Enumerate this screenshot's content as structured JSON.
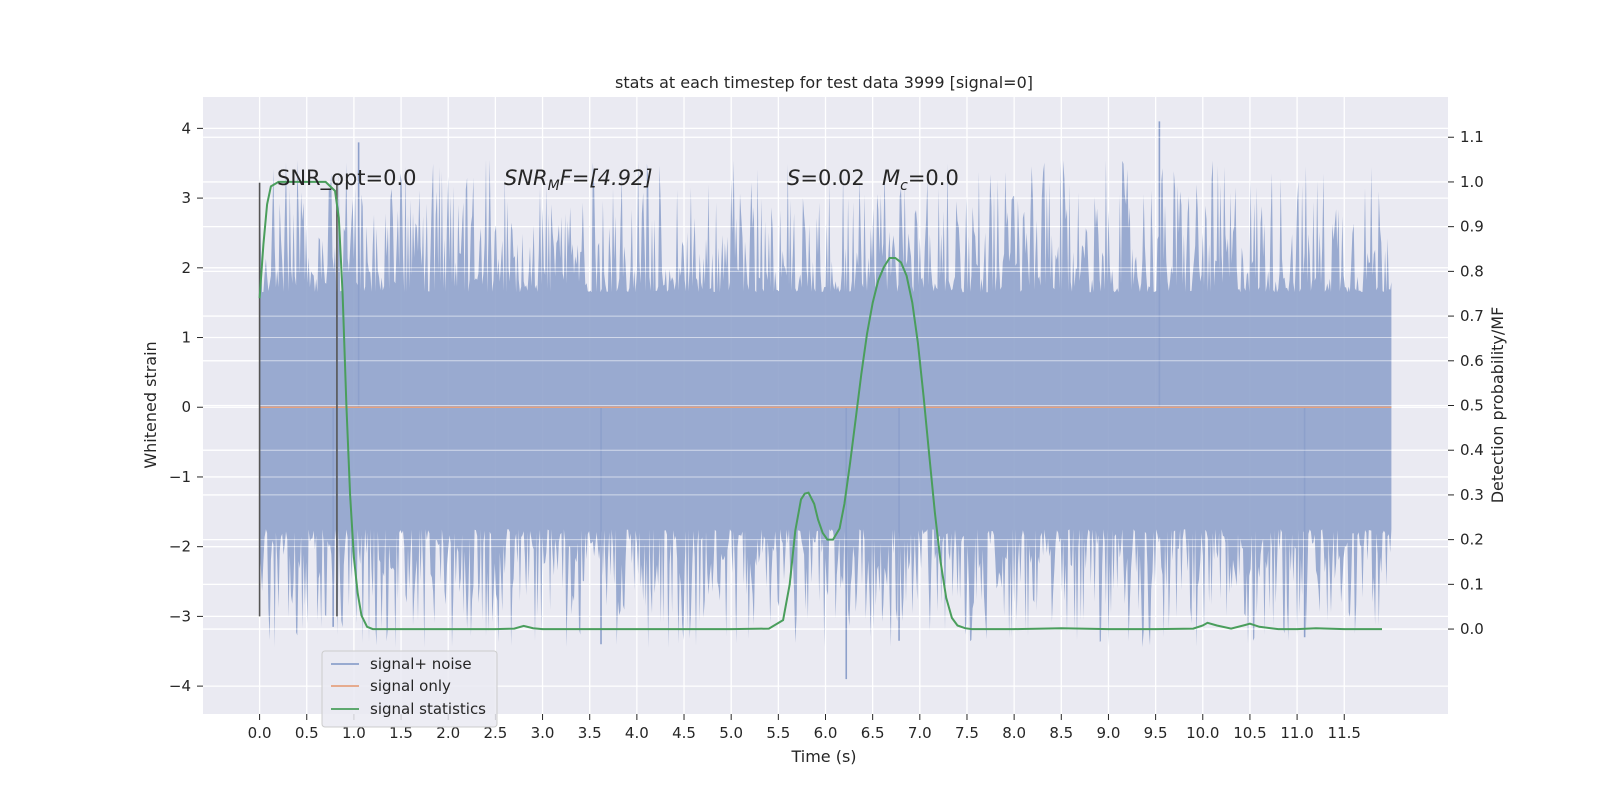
{
  "chart_data": {
    "type": "line",
    "title": "stats at each timestep for test data 3999 [signal=0]",
    "xlabel": "Time (s)",
    "ylabel_left": "Whitened strain",
    "ylabel_right": "Detection probability/MF",
    "xlim": [
      -0.6,
      12.6
    ],
    "ylim_left": [
      -4.4,
      4.45
    ],
    "ylim_right": [
      -0.19,
      1.19
    ],
    "x_ticks": [
      0.0,
      0.5,
      1.0,
      1.5,
      2.0,
      2.5,
      3.0,
      3.5,
      4.0,
      4.5,
      5.0,
      5.5,
      6.0,
      6.5,
      7.0,
      7.5,
      8.0,
      8.5,
      9.0,
      9.5,
      10.0,
      10.5,
      11.0,
      11.5
    ],
    "x_tick_labels": [
      "0.0",
      "0.5",
      "1.0",
      "1.5",
      "2.0",
      "2.5",
      "3.0",
      "3.5",
      "4.0",
      "4.5",
      "5.0",
      "5.5",
      "6.0",
      "6.5",
      "7.0",
      "7.5",
      "8.0",
      "8.5",
      "9.0",
      "9.5",
      "10.0",
      "10.5",
      "11.0",
      "11.5"
    ],
    "y_left_ticks": [
      -4,
      -3,
      -2,
      -1,
      0,
      1,
      2,
      3,
      4
    ],
    "y_left_tick_labels": [
      "−4",
      "−3",
      "−2",
      "−1",
      "0",
      "1",
      "2",
      "3",
      "4"
    ],
    "y_right_ticks": [
      0.0,
      0.1,
      0.2,
      0.3,
      0.4,
      0.5,
      0.6,
      0.7,
      0.8,
      0.9,
      1.0,
      1.1
    ],
    "y_right_tick_labels": [
      "0.0",
      "0.1",
      "0.2",
      "0.3",
      "0.4",
      "0.5",
      "0.6",
      "0.7",
      "0.8",
      "0.9",
      "1.0",
      "1.1"
    ],
    "grid": true,
    "legend_position": "lower-left",
    "annotations": {
      "snr_opt": "SNR_opt=0.0",
      "snr_mf_var": "SNR",
      "snr_mf_sub": "M",
      "snr_mf_rest": "F=[4.92]",
      "s_var": "S",
      "s_rest": "=0.02",
      "mc_var": "M",
      "mc_sub": "c",
      "mc_rest": "=0.0"
    },
    "series": [
      {
        "name": "signal+ noise",
        "axis": "left",
        "color": "#8da0cb",
        "description_of_values": "whitened noise strain sampled over 0.0–12.0 s, roughly within ±1.4 with spikes to about +4.1 and −3.9",
        "t_range": [
          0.0,
          12.0
        ],
        "amplitude_band": [
          -1.4,
          1.4
        ],
        "extremes": [
          {
            "x": 0.78,
            "y": -3.15
          },
          {
            "x": 1.05,
            "y": 3.8
          },
          {
            "x": 3.62,
            "y": -3.4
          },
          {
            "x": 6.22,
            "y": -3.9
          },
          {
            "x": 6.78,
            "y": -3.35
          },
          {
            "x": 9.54,
            "y": 4.1
          },
          {
            "x": 11.08,
            "y": -3.3
          }
        ]
      },
      {
        "name": "signal only",
        "axis": "left",
        "color": "#e5a27f",
        "x": [
          0.0,
          12.0
        ],
        "y": [
          0.0,
          0.0
        ]
      },
      {
        "name": "signal statistics",
        "axis": "right",
        "color": "#4a9e5c",
        "x": [
          0.0,
          0.04,
          0.08,
          0.12,
          0.2,
          0.3,
          0.45,
          0.6,
          0.7,
          0.75,
          0.8,
          0.84,
          0.88,
          0.92,
          0.96,
          1.0,
          1.04,
          1.08,
          1.14,
          1.2,
          1.5,
          2.0,
          2.5,
          2.7,
          2.8,
          2.9,
          3.0,
          3.5,
          4.0,
          4.5,
          5.0,
          5.4,
          5.55,
          5.62,
          5.68,
          5.74,
          5.78,
          5.82,
          5.88,
          5.92,
          5.97,
          6.02,
          6.08,
          6.15,
          6.2,
          6.26,
          6.32,
          6.38,
          6.44,
          6.5,
          6.56,
          6.62,
          6.68,
          6.74,
          6.8,
          6.86,
          6.92,
          6.98,
          7.04,
          7.1,
          7.16,
          7.22,
          7.28,
          7.34,
          7.4,
          7.48,
          7.55,
          7.7,
          8.0,
          8.5,
          9.0,
          9.5,
          9.9,
          10.0,
          10.05,
          10.15,
          10.3,
          10.45,
          10.5,
          10.6,
          10.8,
          11.0,
          11.2,
          11.5,
          11.9
        ],
        "y": [
          0.74,
          0.86,
          0.95,
          0.99,
          1.0,
          1.0,
          1.0,
          1.0,
          1.0,
          0.99,
          0.98,
          0.92,
          0.75,
          0.5,
          0.3,
          0.16,
          0.08,
          0.03,
          0.005,
          0.0,
          0.0,
          0.0,
          0.0,
          0.001,
          0.007,
          0.002,
          0.0,
          0.0,
          0.0,
          0.0,
          0.0,
          0.001,
          0.02,
          0.1,
          0.22,
          0.29,
          0.303,
          0.305,
          0.28,
          0.245,
          0.215,
          0.2,
          0.2,
          0.225,
          0.28,
          0.37,
          0.47,
          0.57,
          0.66,
          0.73,
          0.78,
          0.81,
          0.83,
          0.83,
          0.82,
          0.79,
          0.73,
          0.64,
          0.52,
          0.39,
          0.26,
          0.15,
          0.07,
          0.025,
          0.008,
          0.002,
          0.0,
          0.0,
          0.0,
          0.002,
          0.0,
          0.0,
          0.001,
          0.008,
          0.014,
          0.008,
          0.001,
          0.009,
          0.012,
          0.005,
          0.0,
          0.0,
          0.002,
          0.0,
          0.0
        ]
      }
    ],
    "window_markers": {
      "color": "#555555",
      "x": [
        0.0,
        0.82
      ],
      "ylim": [
        -3.0,
        3.22
      ]
    }
  }
}
